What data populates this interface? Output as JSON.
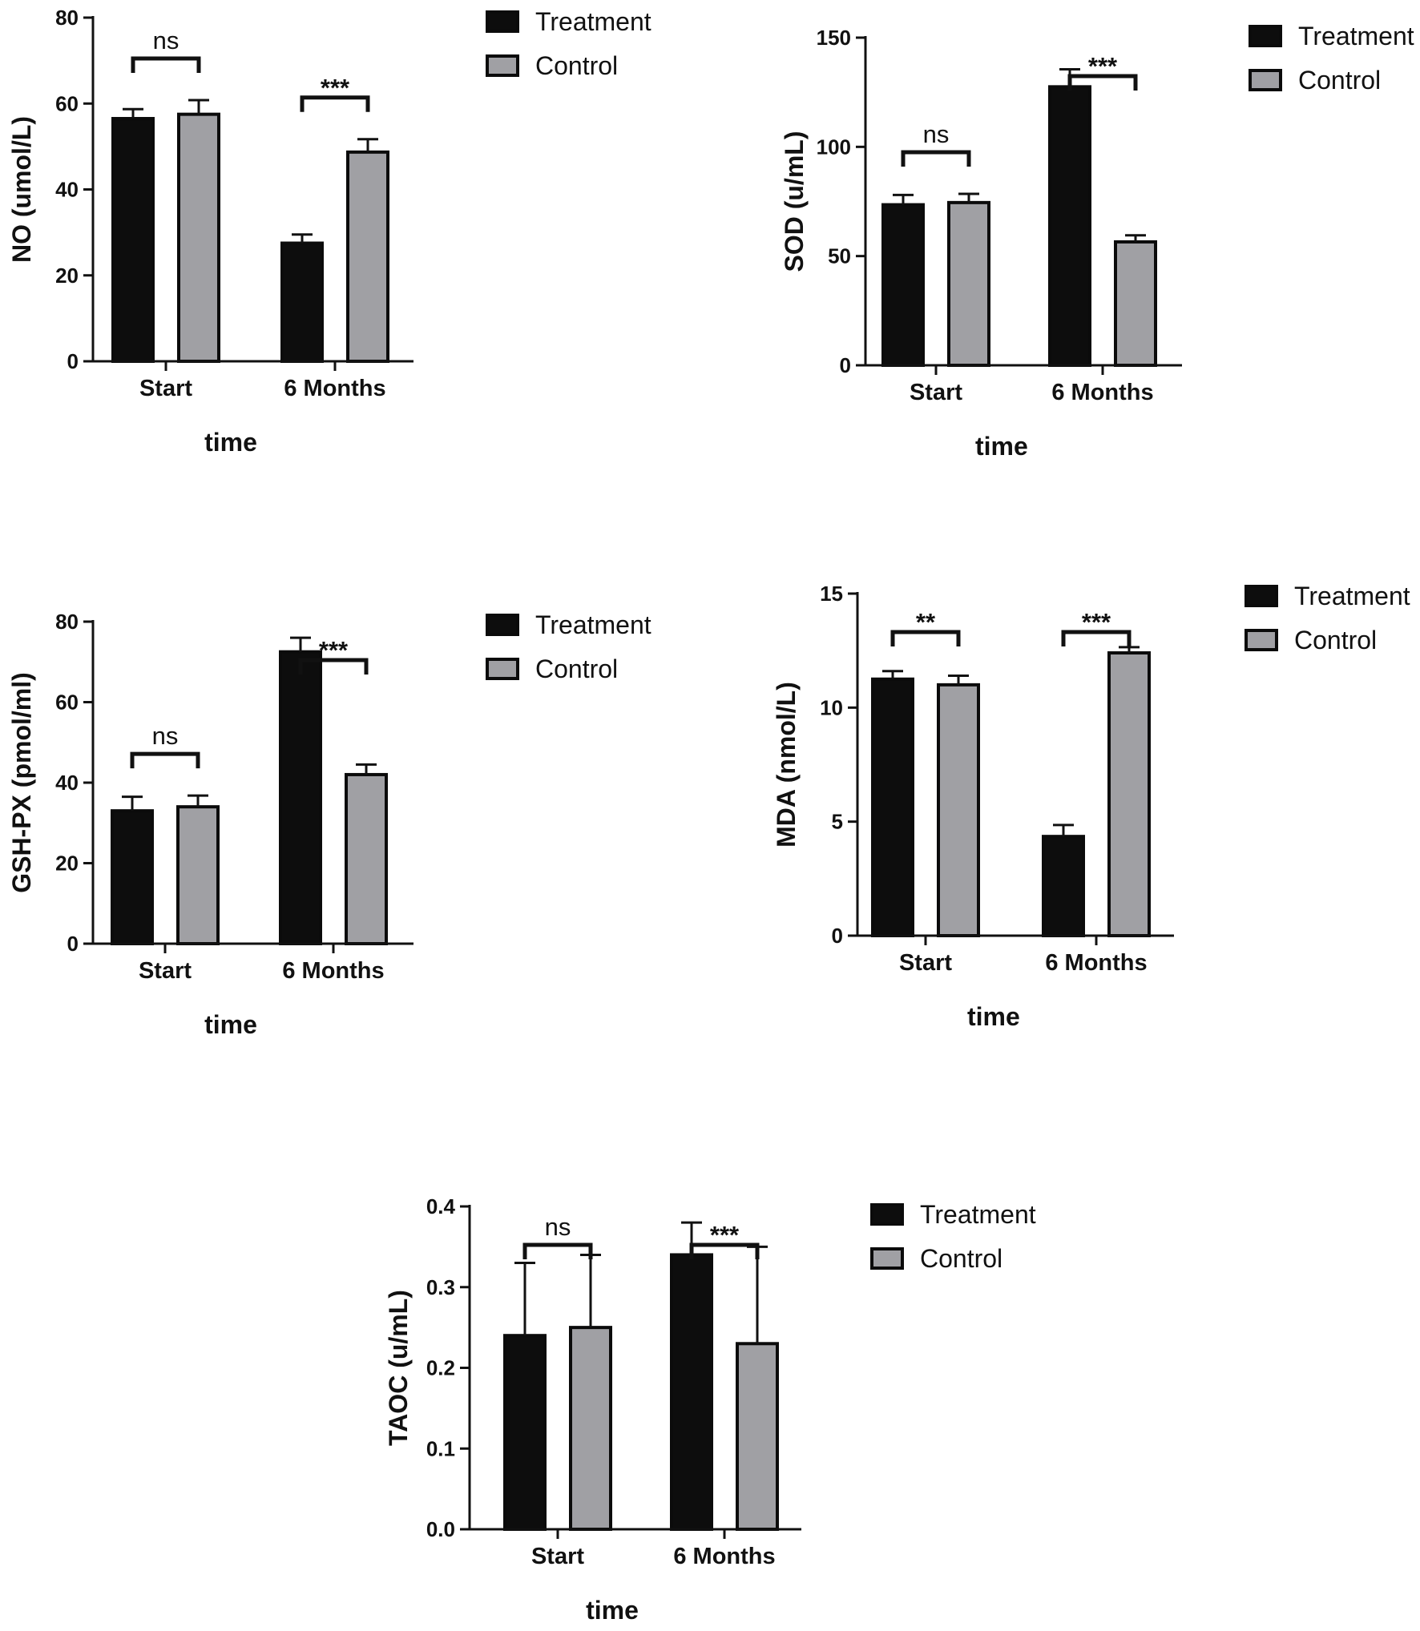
{
  "chart_data": [
    {
      "type": "bar",
      "categories": [
        "Start",
        "6 Months"
      ],
      "series": [
        {
          "name": "Treatment",
          "values": [
            56.5,
            27.5
          ],
          "errors": [
            2.2,
            2.0
          ]
        },
        {
          "name": "Control",
          "values": [
            57.5,
            48.7
          ],
          "errors": [
            3.3,
            3.0
          ]
        }
      ],
      "xlabel": "time",
      "ylabel": "NO (umol/L)",
      "ylim": [
        0,
        80
      ],
      "yticks": [
        0,
        20,
        40,
        60,
        80
      ],
      "significance": [
        "ns",
        "***"
      ]
    },
    {
      "type": "bar",
      "categories": [
        "Start",
        "6 Months"
      ],
      "series": [
        {
          "name": "Treatment",
          "values": [
            73.5,
            127.5
          ],
          "errors": [
            4.5,
            8.0
          ]
        },
        {
          "name": "Control",
          "values": [
            74.5,
            56.5
          ],
          "errors": [
            4.0,
            3.0
          ]
        }
      ],
      "xlabel": "time",
      "ylabel": "SOD (u/mL)",
      "ylim": [
        0,
        150
      ],
      "yticks": [
        0,
        50,
        100,
        150
      ],
      "significance": [
        "ns",
        "***"
      ]
    },
    {
      "type": "bar",
      "categories": [
        "Start",
        "6 Months"
      ],
      "series": [
        {
          "name": "Treatment",
          "values": [
            33.0,
            72.5
          ],
          "errors": [
            3.5,
            3.5
          ]
        },
        {
          "name": "Control",
          "values": [
            34.0,
            42.0
          ],
          "errors": [
            2.8,
            2.5
          ]
        }
      ],
      "xlabel": "time",
      "ylabel": "GSH-PX (pmol/ml)",
      "ylim": [
        0,
        80
      ],
      "yticks": [
        0,
        20,
        40,
        60,
        80
      ],
      "significance": [
        "ns",
        "***"
      ]
    },
    {
      "type": "bar",
      "categories": [
        "Start",
        "6 Months"
      ],
      "series": [
        {
          "name": "Treatment",
          "values": [
            11.25,
            4.35
          ],
          "errors": [
            0.35,
            0.5
          ]
        },
        {
          "name": "Control",
          "values": [
            11.0,
            12.4
          ],
          "errors": [
            0.4,
            0.25
          ]
        }
      ],
      "xlabel": "time",
      "ylabel": "MDA (nmol/L)",
      "ylim": [
        0,
        15
      ],
      "yticks": [
        0,
        5,
        10,
        15
      ],
      "significance": [
        "**",
        "***"
      ]
    },
    {
      "type": "bar",
      "categories": [
        "Start",
        "6 Months"
      ],
      "series": [
        {
          "name": "Treatment",
          "values": [
            0.24,
            0.34
          ],
          "errors": [
            0.09,
            0.04
          ]
        },
        {
          "name": "Control",
          "values": [
            0.25,
            0.23
          ],
          "errors": [
            0.09,
            0.12
          ]
        }
      ],
      "xlabel": "time",
      "ylabel": "TAOC (u/mL)",
      "ylim": [
        0,
        0.4
      ],
      "yticks": [
        "0.0",
        "0.1",
        "0.2",
        "0.3",
        "0.4"
      ],
      "significance": [
        "ns",
        "***"
      ]
    }
  ],
  "colors": {
    "Treatment": "#0d0d0d",
    "Control": "#a0a0a4",
    "axis": "#111111"
  }
}
